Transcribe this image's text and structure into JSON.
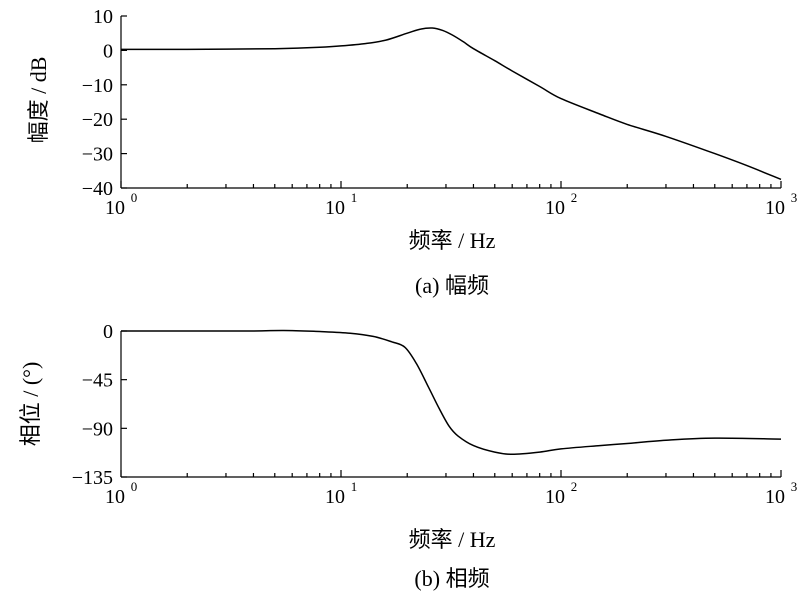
{
  "chart_data": [
    {
      "type": "line",
      "caption": "(a)  幅频",
      "xlabel": "频率 / Hz",
      "ylabel": "幅度 / dB",
      "xscale": "log",
      "xlim": [
        1,
        1000
      ],
      "ylim": [
        -40,
        10
      ],
      "xticks": [
        {
          "base": "10",
          "exp": "0",
          "value": 1
        },
        {
          "base": "10",
          "exp": "1",
          "value": 10
        },
        {
          "base": "10",
          "exp": "2",
          "value": 100
        },
        {
          "base": "10",
          "exp": "3",
          "value": 1000
        }
      ],
      "yticks": [
        {
          "label": "10",
          "value": 10
        },
        {
          "label": "0",
          "value": 0
        },
        {
          "label": "−10",
          "value": -10
        },
        {
          "label": "−20",
          "value": -20
        },
        {
          "label": "−30",
          "value": -30
        },
        {
          "label": "−40",
          "value": -40
        }
      ],
      "grid": false,
      "series": [
        {
          "x": [
            1,
            2,
            5,
            8,
            10,
            13,
            16,
            20,
            23,
            26,
            29,
            32,
            36,
            40,
            50,
            60,
            80,
            100,
            150,
            200,
            300,
            500,
            700,
            1000
          ],
          "y": [
            0.3,
            0.3,
            0.5,
            0.9,
            1.3,
            2.0,
            3.0,
            5.0,
            6.2,
            6.5,
            5.8,
            4.5,
            2.5,
            0.5,
            -3.0,
            -6.0,
            -10.5,
            -14.0,
            -18.5,
            -21.5,
            -25.0,
            -30.0,
            -33.5,
            -37.5
          ]
        }
      ]
    },
    {
      "type": "line",
      "caption": "(b)  相频",
      "xlabel": "频率 / Hz",
      "ylabel": "相位 / (°)",
      "xscale": "log",
      "xlim": [
        1,
        1000
      ],
      "ylim": [
        -135,
        0
      ],
      "xticks": [
        {
          "base": "10",
          "exp": "0",
          "value": 1
        },
        {
          "base": "10",
          "exp": "1",
          "value": 10
        },
        {
          "base": "10",
          "exp": "2",
          "value": 100
        },
        {
          "base": "10",
          "exp": "3",
          "value": 1000
        }
      ],
      "yticks": [
        {
          "label": "0",
          "value": 0
        },
        {
          "label": "−45",
          "value": -45
        },
        {
          "label": "−90",
          "value": -90
        },
        {
          "label": "−135",
          "value": -135
        }
      ],
      "grid": false,
      "series": [
        {
          "x": [
            1,
            2,
            4,
            5.5,
            8,
            11,
            14,
            17,
            19.5,
            22,
            25,
            28,
            31,
            34,
            40,
            50,
            60,
            80,
            100,
            150,
            200,
            300,
            500,
            1000
          ],
          "y": [
            0,
            0,
            0,
            0.5,
            -0.5,
            -2,
            -5,
            -10,
            -15,
            -30,
            -52,
            -72,
            -88,
            -97,
            -106,
            -112,
            -114,
            -112,
            -109,
            -106,
            -104,
            -101,
            -99,
            -100
          ]
        }
      ]
    }
  ]
}
